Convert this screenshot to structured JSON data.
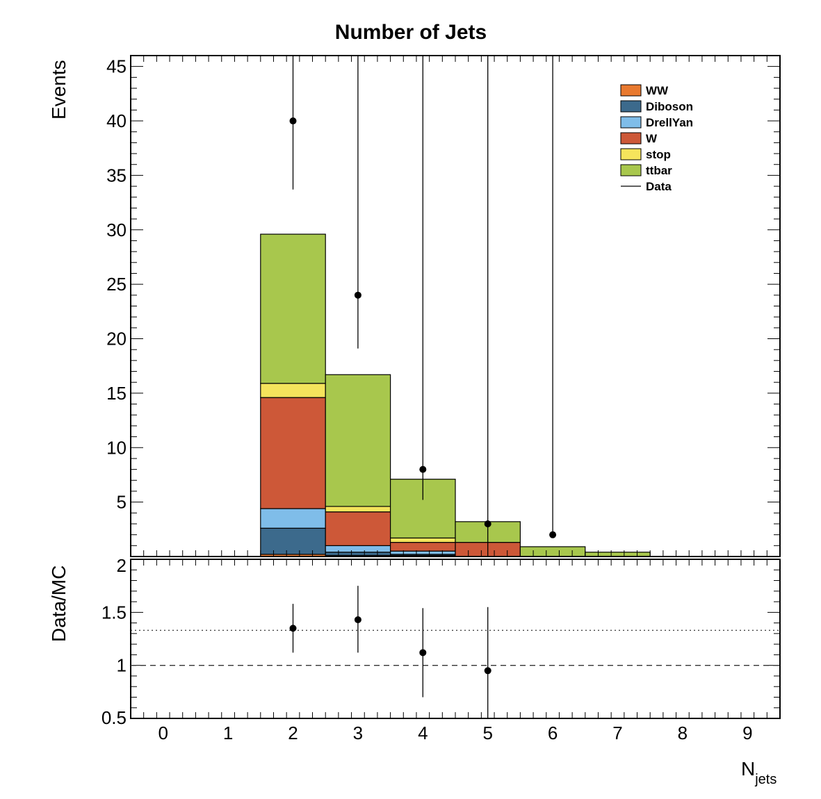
{
  "chart_data": [
    {
      "type": "bar",
      "stacked": true,
      "title": "Number of Jets",
      "ylabel": "Events",
      "ylim": [
        0,
        46
      ],
      "x_bins": [
        2,
        3,
        4,
        5,
        6,
        7
      ],
      "series": [
        {
          "name": "WW",
          "color": "#e8792f",
          "values": [
            0.2,
            0.1,
            0.1,
            0.0,
            0.0,
            0.0
          ]
        },
        {
          "name": "Diboson",
          "color": "#3c6a8c",
          "values": [
            2.4,
            0.3,
            0.1,
            0.0,
            0.0,
            0.0
          ]
        },
        {
          "name": "DrellYan",
          "color": "#7fbde9",
          "values": [
            1.8,
            0.6,
            0.3,
            0.0,
            0.0,
            0.0
          ]
        },
        {
          "name": "W",
          "color": "#cd5838",
          "values": [
            10.2,
            3.1,
            0.8,
            1.3,
            0.0,
            0.0
          ]
        },
        {
          "name": "stop",
          "color": "#f5e45c",
          "values": [
            1.3,
            0.5,
            0.4,
            0.0,
            0.0,
            0.0
          ]
        },
        {
          "name": "ttbar",
          "color": "#a8c74d",
          "values": [
            13.7,
            12.1,
            5.4,
            1.9,
            0.9,
            0.4
          ]
        }
      ],
      "data": {
        "name": "Data",
        "x": [
          2,
          3,
          4,
          5,
          6
        ],
        "y": [
          40,
          24,
          8,
          3,
          2
        ],
        "yerr_up": [
          7.4,
          4.9,
          2.8,
          1.7,
          1.4
        ],
        "yerr_down": [
          6.3,
          4.9,
          2.8,
          3.0,
          0.0
        ]
      },
      "legend": [
        "WW",
        "Diboson",
        "DrellYan",
        "W",
        "stop",
        "ttbar",
        "Data"
      ],
      "legend_position": "top-right",
      "y_ticks": [
        5,
        10,
        15,
        20,
        25,
        30,
        35,
        40,
        45
      ]
    },
    {
      "type": "scatter",
      "ylabel": "Data/MC",
      "xlabel": "N",
      "xlabel_sub": "jets",
      "xlim": [
        -0.5,
        9.5
      ],
      "ylim": [
        0.5,
        2
      ],
      "x_ticks": [
        0,
        1,
        2,
        3,
        4,
        5,
        6,
        7,
        8,
        9
      ],
      "y_ticks": [
        "0.5",
        "1",
        "1.5",
        "2"
      ],
      "points": {
        "x": [
          2,
          3,
          4,
          5
        ],
        "y": [
          1.35,
          1.43,
          1.12,
          0.95
        ],
        "yerr_up": [
          0.23,
          0.32,
          0.42,
          0.6
        ],
        "yerr_down": [
          0.23,
          0.31,
          0.42,
          0.45
        ]
      },
      "reference_lines": [
        {
          "y": 1.0,
          "style": "dashed"
        },
        {
          "y": 1.33,
          "style": "dotted"
        }
      ]
    }
  ]
}
